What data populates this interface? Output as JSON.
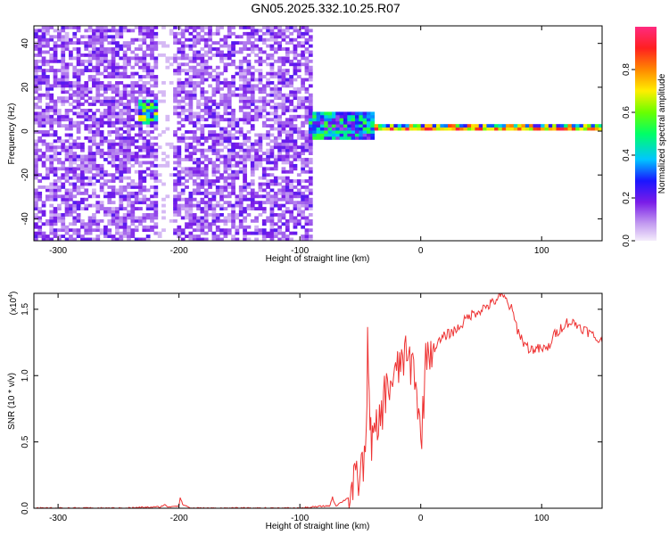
{
  "title": "GN05.2025.332.10.25.R07",
  "colors": {
    "snr_line": "#ee3333",
    "axis": "#000000"
  },
  "chart_data": [
    {
      "type": "heatmap",
      "xlabel": "Height of straight line (km)",
      "ylabel": "Frequency (Hz)",
      "xlim": [
        -320,
        150
      ],
      "ylim": [
        -50,
        48
      ],
      "x_ticks": [
        -300,
        -200,
        -100,
        0,
        100
      ],
      "y_ticks": [
        -40,
        -20,
        0,
        20,
        40
      ],
      "colorbar": {
        "label": "Normalized spectral amplitude",
        "range": [
          0.0,
          1.0
        ],
        "ticks": [
          "0.0",
          "0.2",
          "0.4",
          "0.6",
          "0.8"
        ],
        "colormap": "rainbow (light violet → purple → blue → cyan → green → yellow → orange → red → pink)"
      },
      "regions": [
        {
          "x": [
            -320,
            -92
          ],
          "f": [
            -50,
            48
          ],
          "amplitude": 0.12,
          "pattern": "broadband speckle noise"
        },
        {
          "x": [
            -220,
            -208
          ],
          "f": [
            -50,
            48
          ],
          "amplitude": 0.02,
          "pattern": "gap"
        },
        {
          "x": [
            -235,
            -210
          ],
          "f": [
            2,
            14
          ],
          "amplitude": 0.45,
          "pattern": "localized cluster"
        },
        {
          "x": [
            -95,
            -40
          ],
          "f": [
            -5,
            8
          ],
          "amplitude": 0.35,
          "pattern": "cluster"
        },
        {
          "x": [
            -40,
            150
          ],
          "f": [
            -1,
            2
          ],
          "amplitude": 0.55,
          "pattern": "narrow band near 0 Hz"
        }
      ]
    },
    {
      "type": "line",
      "xlabel": "Height of straight line (km)",
      "ylabel": "SNR (10 * v/v)",
      "y_multiplier": "(x10^4)",
      "xlim": [
        -320,
        150
      ],
      "ylim": [
        0,
        1.62
      ],
      "x_ticks": [
        -300,
        -200,
        -100,
        0,
        100
      ],
      "y_ticks": [
        "0.0",
        "0.5",
        "1.0",
        "1.5"
      ],
      "series": [
        {
          "x": [
            -320,
            -250,
            -215,
            -212,
            -210,
            -200,
            -199,
            -197,
            -190,
            -150,
            -100,
            -75,
            -73,
            -72,
            -70,
            -60,
            -50,
            -45,
            -44,
            -42,
            -40,
            -35,
            -30,
            -25,
            -20,
            -15,
            -10,
            -5,
            0,
            5,
            10,
            20,
            30,
            40,
            50,
            60,
            65,
            70,
            75,
            80,
            85,
            90,
            100,
            105,
            110,
            115,
            120,
            125,
            130,
            135,
            140,
            145,
            150
          ],
          "y": [
            0.0,
            0.0,
            0.01,
            0.03,
            0.01,
            0.02,
            0.08,
            0.03,
            0.0,
            0.0,
            0.0,
            0.02,
            0.09,
            0.05,
            0.02,
            0.08,
            0.25,
            0.45,
            1.45,
            0.55,
            0.5,
            0.6,
            0.85,
            0.95,
            1.0,
            1.15,
            1.1,
            1.05,
            0.5,
            1.2,
            1.2,
            1.3,
            1.35,
            1.45,
            1.5,
            1.55,
            1.6,
            1.58,
            1.5,
            1.35,
            1.25,
            1.2,
            1.2,
            1.2,
            1.3,
            1.35,
            1.4,
            1.4,
            1.38,
            1.35,
            1.32,
            1.28,
            1.25
          ]
        }
      ]
    }
  ],
  "labels": {
    "tick_x": [
      "-300",
      "-200",
      "-100",
      "0",
      "100"
    ],
    "tick_y_top": [
      "-40",
      "-20",
      "0",
      "20",
      "40"
    ],
    "exp_prefix": "(x10",
    "exp_power": "4",
    "exp_suffix": ")"
  }
}
